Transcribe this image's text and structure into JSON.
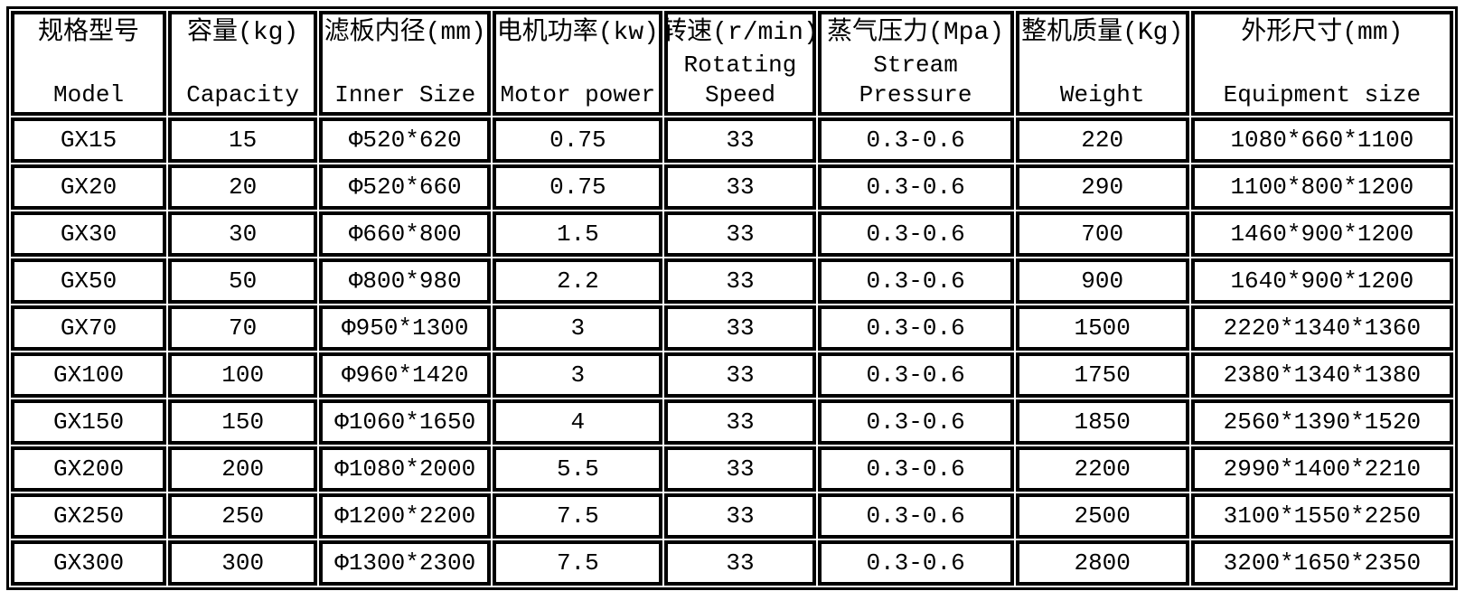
{
  "table": {
    "columns": [
      {
        "zh": "规格型号",
        "en": "Model"
      },
      {
        "zh": "容量(kg)",
        "en": "Capacity"
      },
      {
        "zh": "滤板内径(mm)",
        "en": "Inner Size"
      },
      {
        "zh": "电机功率(kw)",
        "en": "Motor power"
      },
      {
        "zh": "转速(r/min)",
        "en": "Rotating Speed"
      },
      {
        "zh": "蒸气压力(Mpa)",
        "en": "Stream Pressure"
      },
      {
        "zh": "整机质量(Kg)",
        "en": "Weight"
      },
      {
        "zh": "外形尺寸(mm)",
        "en": "Equipment size"
      }
    ],
    "rows": [
      [
        "GX15",
        "15",
        "Φ520*620",
        "0.75",
        "33",
        "0.3-0.6",
        "220",
        "1080*660*1100"
      ],
      [
        "GX20",
        "20",
        "Φ520*660",
        "0.75",
        "33",
        "0.3-0.6",
        "290",
        "1100*800*1200"
      ],
      [
        "GX30",
        "30",
        "Φ660*800",
        "1.5",
        "33",
        "0.3-0.6",
        "700",
        "1460*900*1200"
      ],
      [
        "GX50",
        "50",
        "Φ800*980",
        "2.2",
        "33",
        "0.3-0.6",
        "900",
        "1640*900*1200"
      ],
      [
        "GX70",
        "70",
        "Φ950*1300",
        "3",
        "33",
        "0.3-0.6",
        "1500",
        "2220*1340*1360"
      ],
      [
        "GX100",
        "100",
        "Φ960*1420",
        "3",
        "33",
        "0.3-0.6",
        "1750",
        "2380*1340*1380"
      ],
      [
        "GX150",
        "150",
        "Φ1060*1650",
        "4",
        "33",
        "0.3-0.6",
        "1850",
        "2560*1390*1520"
      ],
      [
        "GX200",
        "200",
        "Φ1080*2000",
        "5.5",
        "33",
        "0.3-0.6",
        "2200",
        "2990*1400*2210"
      ],
      [
        "GX250",
        "250",
        "Φ1200*2200",
        "7.5",
        "33",
        "0.3-0.6",
        "2500",
        "3100*1550*2250"
      ],
      [
        "GX300",
        "300",
        "Φ1300*2300",
        "7.5",
        "33",
        "0.3-0.6",
        "2800",
        "3200*1650*2350"
      ]
    ],
    "colors": {
      "border": "#000000",
      "background": "#ffffff",
      "text": "#000000"
    }
  }
}
